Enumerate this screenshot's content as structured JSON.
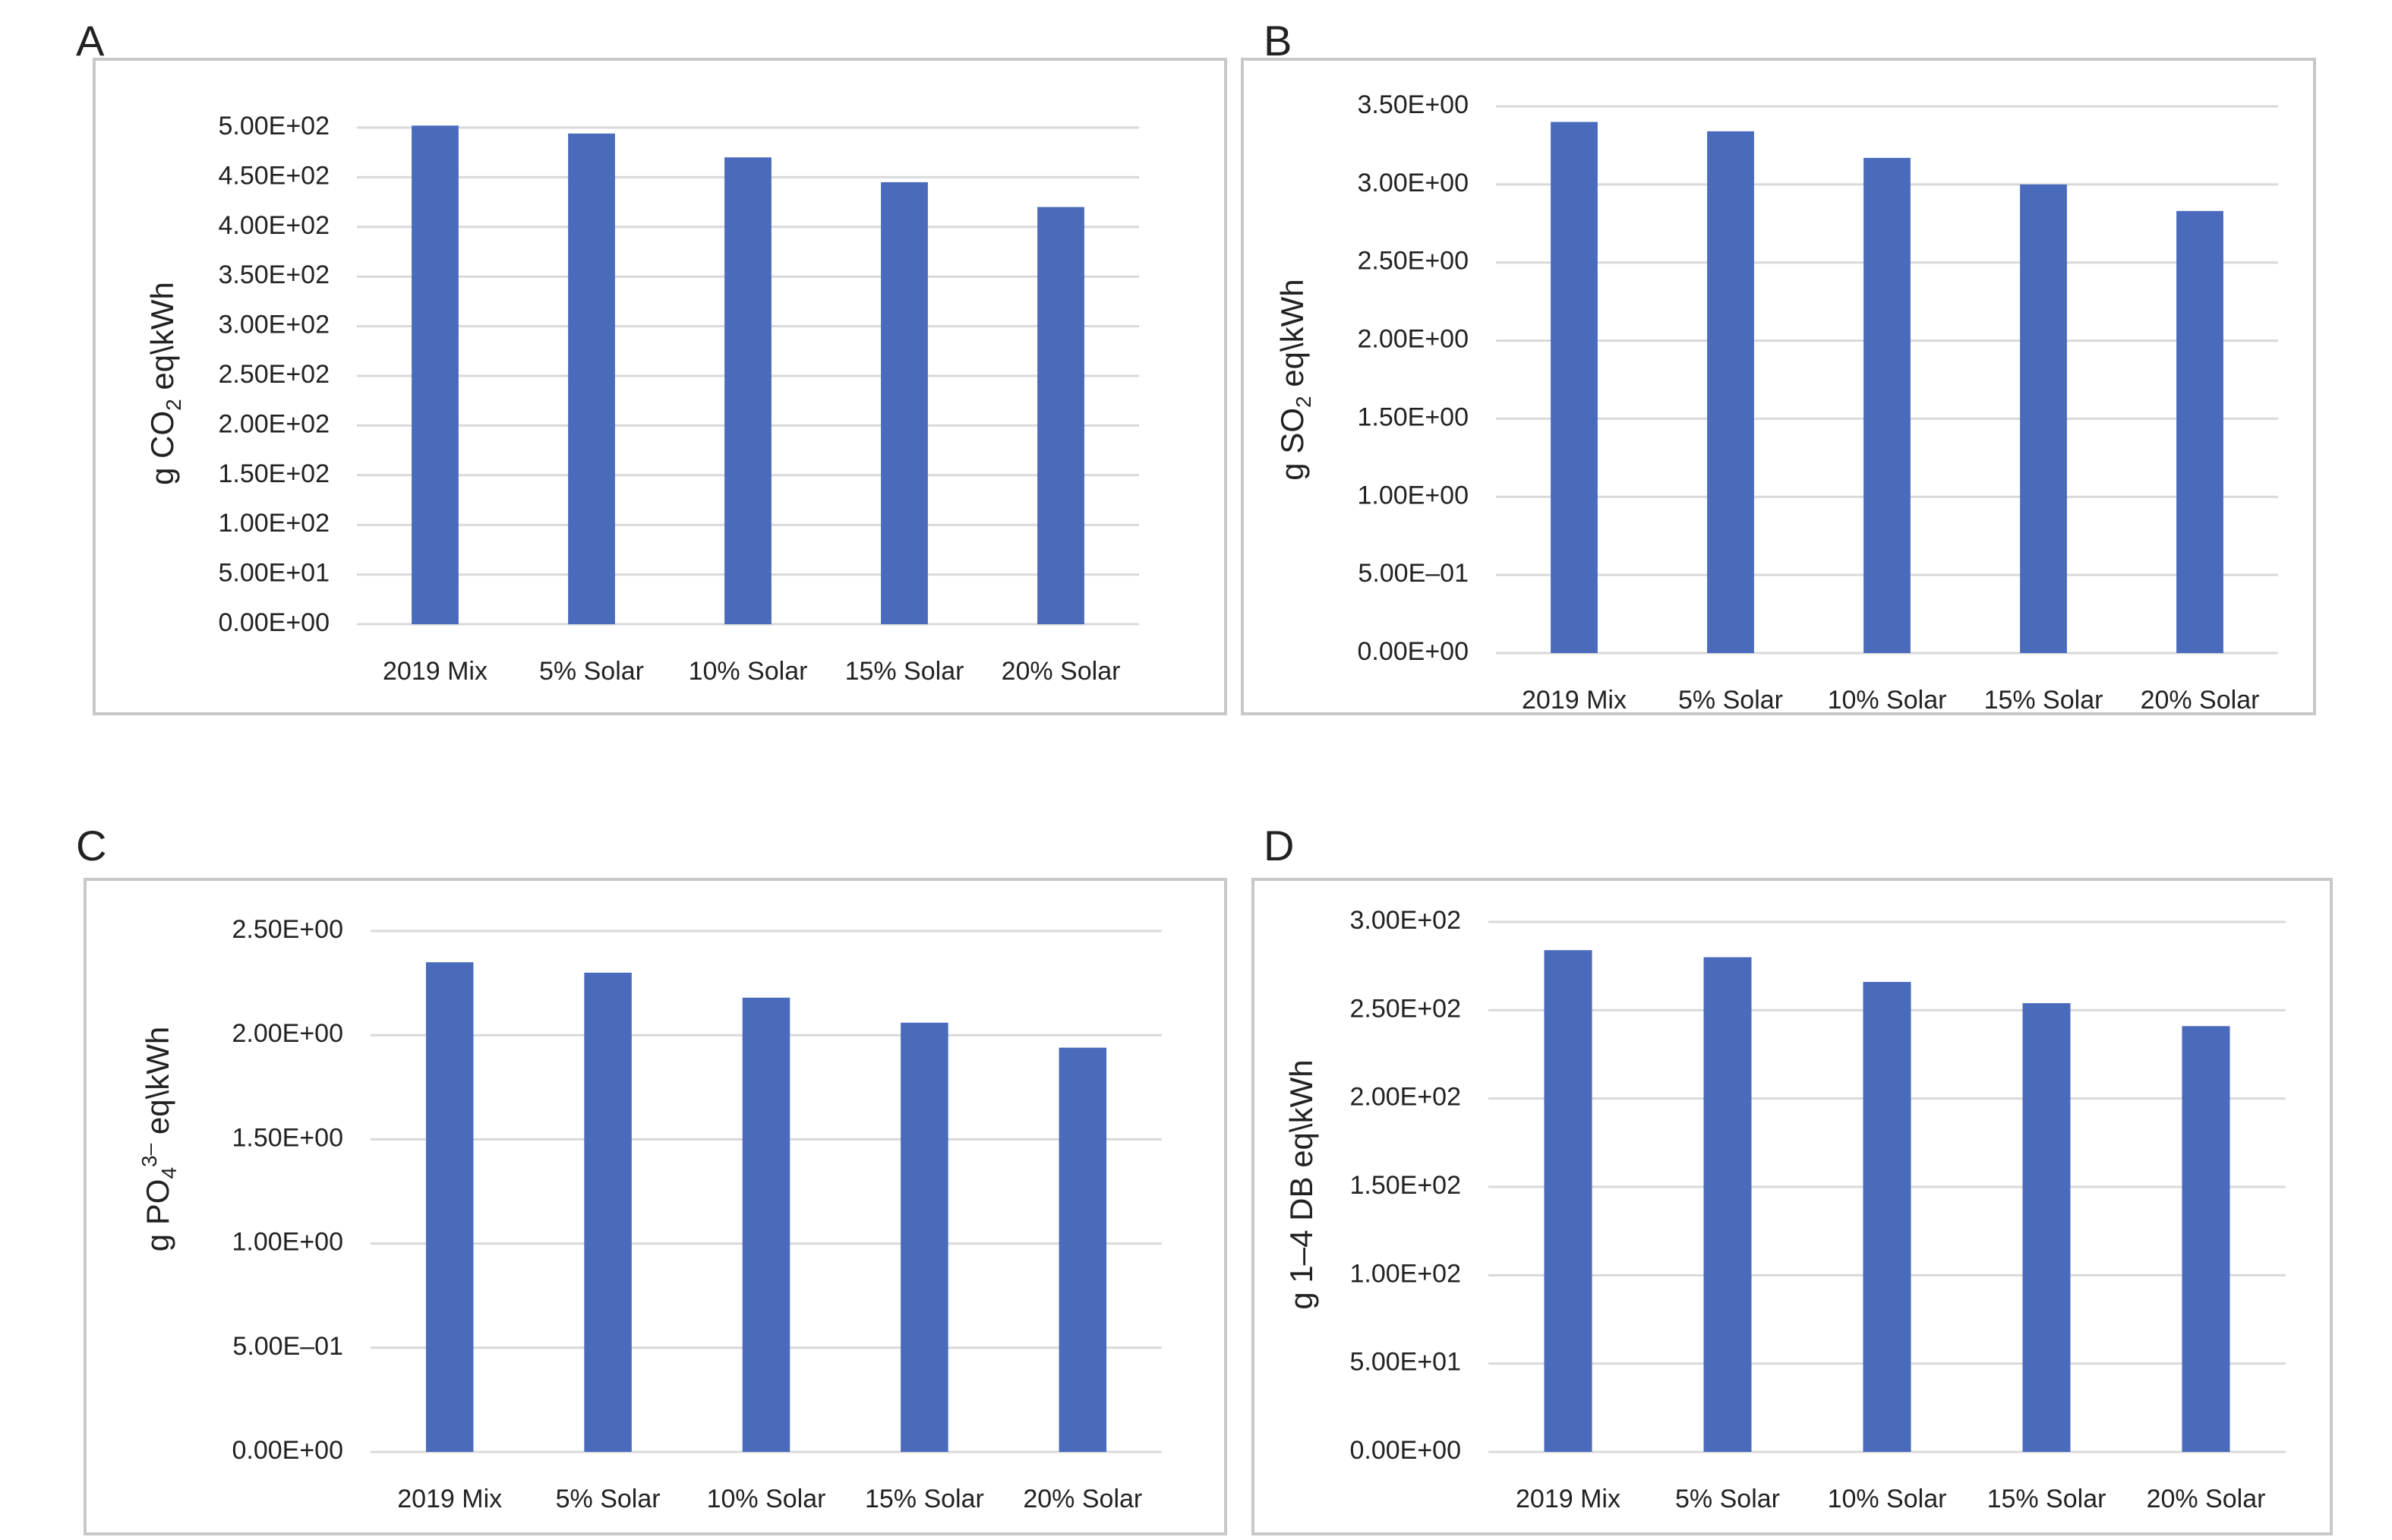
{
  "chart_data": [
    {
      "panel": "A",
      "type": "bar",
      "categories": [
        "2019 Mix",
        "5% Solar",
        "10% Solar",
        "15% Solar",
        "20% Solar"
      ],
      "values": [
        502,
        494,
        470,
        445,
        420
      ],
      "ylabel": {
        "pre": "g CO",
        "sub": "2",
        "sup": "",
        "post": " eq\\kWh"
      },
      "ylim": [
        0,
        500
      ],
      "ticks": [
        0,
        50,
        100,
        150,
        200,
        250,
        300,
        350,
        400,
        450,
        500
      ],
      "tick_labels": [
        "0.00E+00",
        "5.00E+01",
        "1.00E+02",
        "1.50E+02",
        "2.00E+02",
        "2.50E+02",
        "3.00E+02",
        "3.50E+02",
        "4.00E+02",
        "4.50E+02",
        "5.00E+02"
      ],
      "grid": true,
      "color": "#4a6abc"
    },
    {
      "panel": "B",
      "type": "bar",
      "categories": [
        "2019 Mix",
        "5% Solar",
        "10% Solar",
        "15% Solar",
        "20% Solar"
      ],
      "values": [
        3.4,
        3.34,
        3.17,
        3.0,
        2.83
      ],
      "ylabel": {
        "pre": "g SO",
        "sub": "2",
        "sup": "",
        "post": " eq\\kWh"
      },
      "ylim": [
        0,
        3.5
      ],
      "ticks": [
        0,
        0.5,
        1.0,
        1.5,
        2.0,
        2.5,
        3.0,
        3.5
      ],
      "tick_labels": [
        "0.00E+00",
        "5.00E–01",
        "1.00E+00",
        "1.50E+00",
        "2.00E+00",
        "2.50E+00",
        "3.00E+00",
        "3.50E+00"
      ],
      "grid": true,
      "color": "#4a6abc"
    },
    {
      "panel": "C",
      "type": "bar",
      "categories": [
        "2019 Mix",
        "5% Solar",
        "10% Solar",
        "15% Solar",
        "20% Solar"
      ],
      "values": [
        2.35,
        2.3,
        2.18,
        2.06,
        1.94
      ],
      "ylabel": {
        "pre": "g PO",
        "sub": "4",
        "sup": "3–",
        "post": " eq\\kWh"
      },
      "ylim": [
        0,
        2.5
      ],
      "ticks": [
        0,
        0.5,
        1.0,
        1.5,
        2.0,
        2.5
      ],
      "tick_labels": [
        "0.00E+00",
        "5.00E–01",
        "1.00E+00",
        "1.50E+00",
        "2.00E+00",
        "2.50E+00"
      ],
      "grid": true,
      "color": "#4a6abc"
    },
    {
      "panel": "D",
      "type": "bar",
      "categories": [
        "2019 Mix",
        "5% Solar",
        "10% Solar",
        "15% Solar",
        "20% Solar"
      ],
      "values": [
        284,
        280,
        266,
        254,
        241
      ],
      "ylabel": {
        "pre": "g 1–4 DB eq\\kWh",
        "sub": "",
        "sup": "",
        "post": ""
      },
      "ylim": [
        0,
        300
      ],
      "ticks": [
        0,
        50,
        100,
        150,
        200,
        250,
        300
      ],
      "tick_labels": [
        "0.00E+00",
        "5.00E+01",
        "1.00E+02",
        "1.50E+02",
        "2.00E+02",
        "2.50E+02",
        "3.00E+02"
      ],
      "grid": true,
      "color": "#4a6abc"
    }
  ]
}
